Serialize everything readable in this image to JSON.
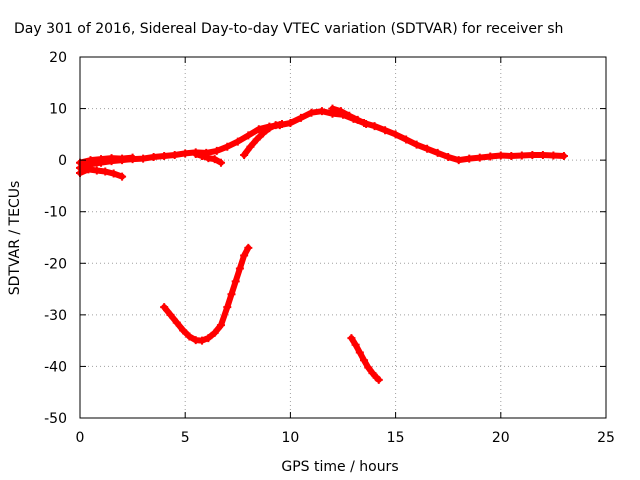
{
  "chart_data": {
    "type": "scatter",
    "title": "Day 301 of 2016, Sidereal Day-to-day VTEC variation (SDTVAR) for receiver sh",
    "xlabel": "GPS time / hours",
    "ylabel": "SDTVAR / TECUs",
    "xlim": [
      0,
      25
    ],
    "ylim": [
      -50,
      20
    ],
    "xticks": [
      0,
      5,
      10,
      15,
      20,
      25
    ],
    "yticks": [
      -50,
      -40,
      -30,
      -20,
      -10,
      0,
      10,
      20
    ],
    "grid": true,
    "legend": "none",
    "marker": "plus",
    "series": [
      {
        "name": "main diurnal trace",
        "color": "#ff0000",
        "x": [
          0.0,
          0.5,
          1.0,
          1.5,
          2.0,
          2.5,
          3.0,
          3.5,
          4.0,
          4.5,
          5.0,
          5.5,
          6.0,
          6.5,
          7.0,
          7.5,
          8.0,
          8.5,
          9.0,
          9.5,
          10.0,
          10.5,
          11.0,
          11.5,
          12.0,
          12.5,
          13.0,
          13.5,
          14.0,
          14.5,
          15.0,
          15.5,
          16.0,
          16.5,
          17.0,
          17.5,
          18.0,
          18.5,
          19.0,
          19.5,
          20.0,
          20.5,
          21.0,
          21.5,
          22.0,
          22.5,
          23.0
        ],
        "y": [
          -1.5,
          -0.8,
          -0.5,
          -0.2,
          0.0,
          0.2,
          0.3,
          0.6,
          0.8,
          1.0,
          1.3,
          1.5,
          1.4,
          1.8,
          2.6,
          3.6,
          4.8,
          6.0,
          6.5,
          6.8,
          7.2,
          8.2,
          9.2,
          9.5,
          9.0,
          8.8,
          8.0,
          7.2,
          6.6,
          5.8,
          5.0,
          4.0,
          3.0,
          2.2,
          1.4,
          0.6,
          0.0,
          0.3,
          0.5,
          0.7,
          0.9,
          0.8,
          0.9,
          1.0,
          1.0,
          0.9,
          0.8
        ]
      },
      {
        "name": "lower band near zero",
        "color": "#ff0000",
        "x": [
          0.0,
          0.4,
          0.8,
          1.2,
          1.6,
          2.0
        ],
        "y": [
          -2.5,
          -1.8,
          -2.0,
          -2.2,
          -2.6,
          -3.2
        ]
      },
      {
        "name": "upper band near zero",
        "color": "#ff0000",
        "x": [
          0.0,
          0.5,
          1.0,
          1.5,
          2.0,
          2.5
        ],
        "y": [
          -0.5,
          0.0,
          0.2,
          0.4,
          0.3,
          0.5
        ]
      },
      {
        "name": "dip segment midday",
        "color": "#ff0000",
        "x": [
          5.5,
          5.8,
          6.1,
          6.4,
          6.7
        ],
        "y": [
          1.2,
          0.8,
          0.4,
          0.2,
          -0.5
        ]
      },
      {
        "name": "rising branch 8h",
        "color": "#ff0000",
        "x": [
          7.8,
          8.1,
          8.4,
          8.7,
          9.0,
          9.3,
          9.6
        ],
        "y": [
          1.0,
          2.6,
          4.0,
          5.2,
          6.2,
          6.8,
          7.0
        ]
      },
      {
        "name": "shifted segment 12-13h",
        "color": "#ff0000",
        "x": [
          12.0,
          12.4,
          12.8,
          13.2,
          13.6
        ],
        "y": [
          10.0,
          9.5,
          8.6,
          7.8,
          7.0
        ]
      },
      {
        "name": "U-shaped outlier 4-8h",
        "color": "#ff0000",
        "x": [
          4.0,
          4.3,
          4.6,
          4.9,
          5.2,
          5.5,
          5.8,
          6.1,
          6.4,
          6.7,
          7.0,
          7.2,
          7.4,
          7.6,
          7.8,
          8.0
        ],
        "y": [
          -28.5,
          -30.0,
          -31.5,
          -33.0,
          -34.2,
          -34.9,
          -35.0,
          -34.5,
          -33.5,
          -32.0,
          -28.5,
          -26.0,
          -23.5,
          -21.0,
          -18.5,
          -17.0
        ]
      },
      {
        "name": "descending outlier 13-14h",
        "color": "#ff0000",
        "x": [
          12.9,
          13.1,
          13.3,
          13.5,
          13.7,
          13.9,
          14.1,
          14.2
        ],
        "y": [
          -34.5,
          -35.8,
          -37.3,
          -38.8,
          -40.2,
          -41.3,
          -42.2,
          -42.6
        ]
      }
    ]
  }
}
